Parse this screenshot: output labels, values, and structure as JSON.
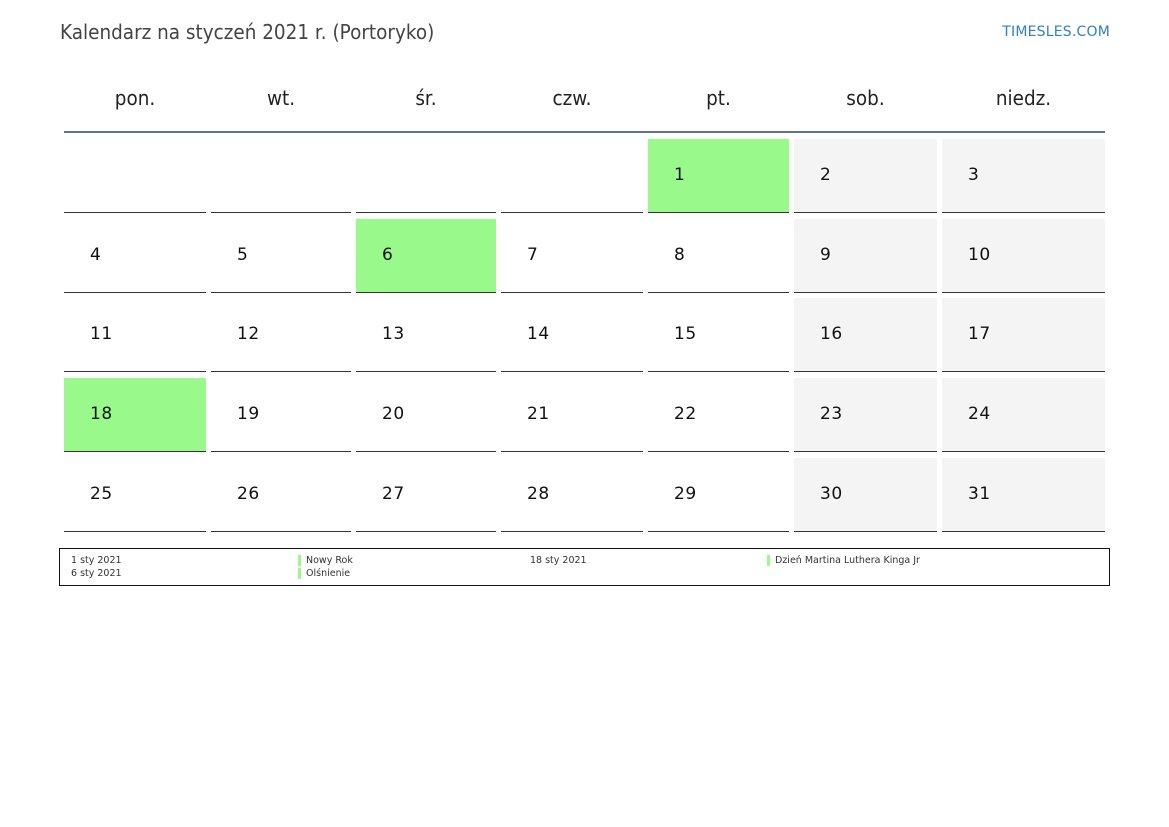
{
  "header": {
    "title": "Kalendarz na styczeń 2021 r. (Portoryko)",
    "brand": "TIMESLES.COM"
  },
  "weekdays": [
    "pon.",
    "wt.",
    "śr.",
    "czw.",
    "pt.",
    "sob.",
    "niedz."
  ],
  "colors": {
    "holiday": "#99f98b",
    "weekend": "#f4f4f4",
    "header_line": "#5b7494",
    "brand": "#2f7fc1"
  },
  "weeks": [
    [
      "",
      "",
      "",
      "",
      "1",
      "2",
      "3"
    ],
    [
      "4",
      "5",
      "6",
      "7",
      "8",
      "9",
      "10"
    ],
    [
      "11",
      "12",
      "13",
      "14",
      "15",
      "16",
      "17"
    ],
    [
      "18",
      "19",
      "20",
      "21",
      "22",
      "23",
      "24"
    ],
    [
      "25",
      "26",
      "27",
      "28",
      "29",
      "30",
      "31"
    ]
  ],
  "holiday_days": [
    "1",
    "6",
    "18"
  ],
  "legend": [
    {
      "date": "1 sty 2021",
      "name": "Nowy Rok"
    },
    {
      "date": "6 sty 2021",
      "name": "Olśnienie"
    },
    {
      "date": "18 sty 2021",
      "name": "Dzień Martina Luthera Kinga Jr"
    }
  ]
}
